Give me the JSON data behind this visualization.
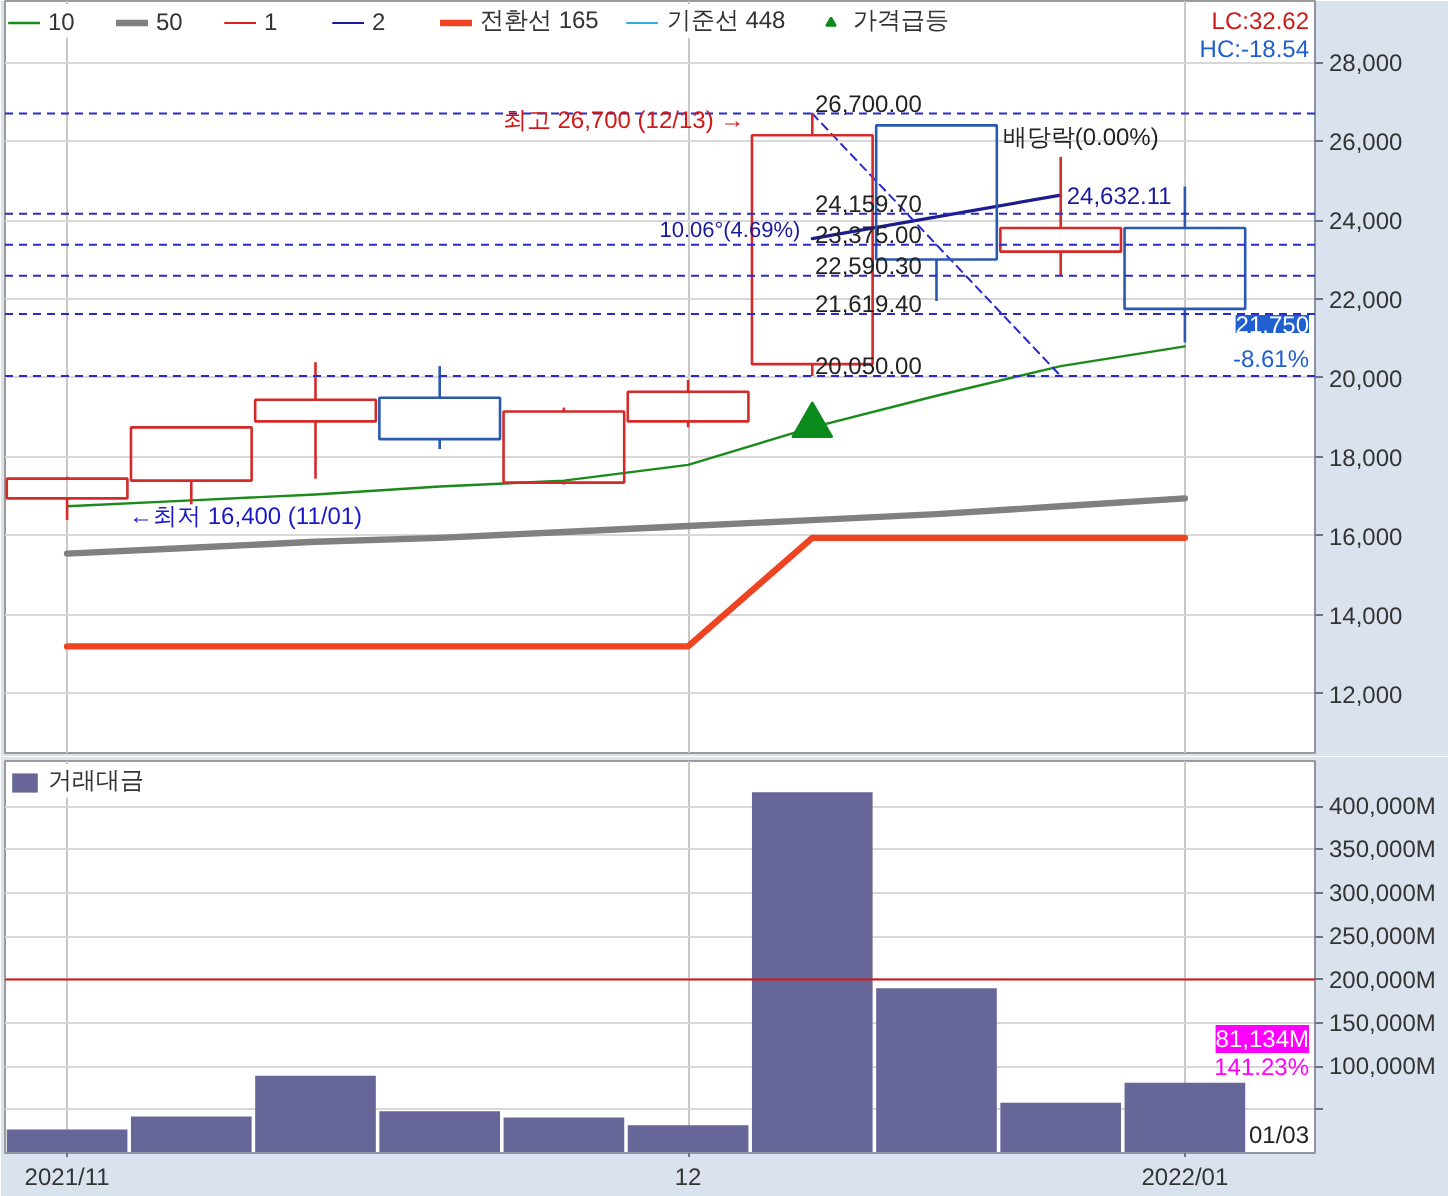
{
  "chart_data": [
    {
      "type": "candlestick",
      "x": [
        "2021-11-01",
        "2021-11-08",
        "2021-11-15",
        "2021-11-22",
        "2021-11-29",
        "2021-12-06",
        "2021-12-13",
        "2021-12-20",
        "2021-12-27",
        "2022-01-03"
      ],
      "ohlc": [
        [
          16950,
          17500,
          16400,
          17450
        ],
        [
          17400,
          18750,
          16800,
          18750
        ],
        [
          18900,
          20400,
          17450,
          19450
        ],
        [
          19500,
          20300,
          18200,
          18450
        ],
        [
          17350,
          19250,
          17300,
          19150
        ],
        [
          18900,
          19950,
          18750,
          19650
        ],
        [
          20350,
          26700,
          20050,
          26150
        ],
        [
          26400,
          26400,
          21950,
          23000
        ],
        [
          23200,
          25600,
          22600,
          23800
        ],
        [
          23800,
          24850,
          20900,
          21750
        ]
      ],
      "colors": [
        "#d42a2a",
        "#d42a2a",
        "#d42a2a",
        "#2a5ab0",
        "#d42a2a",
        "#d42a2a",
        "#d42a2a",
        "#2a5ab0",
        "#d42a2a",
        "#2a5ab0"
      ],
      "xlim": [
        "2021-10-28T12:00",
        "2022-01-10T08:00"
      ],
      "xticks": [
        {
          "value": "2021-11-01",
          "label": null
        },
        {
          "value": "2021-12-06",
          "label": null
        },
        {
          "value": "2022-01-03",
          "label": null
        }
      ],
      "ylim": [
        10500,
        29550
      ],
      "yticks": [
        {
          "value": 12000,
          "label": "12,000"
        },
        {
          "value": 14000,
          "label": "14,000"
        },
        {
          "value": 16000,
          "label": "16,000"
        },
        {
          "value": 18000,
          "label": "18,000"
        },
        {
          "value": 20000,
          "label": "20,000"
        },
        {
          "value": 22000,
          "label": "22,000"
        },
        {
          "value": 24000,
          "label": "24,000"
        },
        {
          "value": 26000,
          "label": "26,000"
        },
        {
          "value": 28000,
          "label": "28,000"
        }
      ],
      "tick_labels": "y",
      "grid": true,
      "legend": "top left",
      "series": [
        {
          "name": "10",
          "type": "line",
          "color": "#1a8a1a",
          "values": [
            16750,
            16900,
            17050,
            17250,
            17400,
            17800,
            18750,
            19550,
            20300,
            20800
          ]
        },
        {
          "name": "50",
          "type": "line",
          "color": "#808080",
          "values": [
            15550,
            15700,
            15850,
            15950,
            16100,
            16250,
            16400,
            16550,
            16750,
            16950
          ]
        },
        {
          "name": "1",
          "type": "line",
          "color": "#e02020",
          "values": [
            null,
            null,
            null,
            null,
            null,
            null,
            null,
            null,
            null,
            null
          ]
        },
        {
          "name": "2",
          "type": "line",
          "color": "#1a1aa0",
          "values": [
            null,
            null,
            null,
            null,
            null,
            null,
            null,
            null,
            null,
            null
          ]
        },
        {
          "name": "전환선 165",
          "type": "line",
          "color": "#ee4422",
          "values": [
            13200,
            13200,
            13200,
            13200,
            13200,
            13200,
            15950,
            15950,
            15950,
            15950
          ]
        },
        {
          "name": "기준선 448",
          "type": "line",
          "color": "#30b0e0",
          "values": [
            null,
            null,
            null,
            null,
            null,
            null,
            null,
            null,
            null,
            null
          ]
        },
        {
          "name": "가격급등",
          "type": "scatter",
          "marker": "triangle",
          "color": "#0a8a1a",
          "values": [
            null,
            null,
            null,
            null,
            null,
            null,
            18800,
            null,
            null,
            null
          ]
        },
        {
          "type": "line",
          "color": "#1c1c8c",
          "x": [
            "2021-12-13",
            "2021-12-27"
          ],
          "values": [
            23530,
            24632.11
          ]
        },
        {
          "type": "line",
          "line_style": "dashed",
          "color": "#2a2acc",
          "x": [
            "2021-12-13",
            "2021-12-27"
          ],
          "values": [
            26700,
            20050
          ]
        }
      ],
      "ref_lines": [
        {
          "axis": "y",
          "value": 26700,
          "label": "26,700.00",
          "color": "#2a2acc",
          "line_style": "dashed"
        },
        {
          "axis": "y",
          "value": 24159.7,
          "label": "24,159.70",
          "color": "#2a2acc",
          "line_style": "dashed"
        },
        {
          "axis": "y",
          "value": 23375,
          "label": "23,375.00",
          "color": "#2a2acc",
          "line_style": "dashed"
        },
        {
          "axis": "y",
          "value": 22590.3,
          "label": "22,590.30",
          "color": "#2a2acc",
          "line_style": "dashed"
        },
        {
          "axis": "y",
          "value": 21619.4,
          "label": "21,619.40",
          "color": "#2a2acc",
          "line_style": "dashed"
        },
        {
          "axis": "y",
          "value": 20050,
          "label": "20,050.00",
          "color": "#2a2acc",
          "line_style": "dashed"
        }
      ],
      "annotations": [
        {
          "text": "최고 26,700 (12/13) →",
          "x": "2021-12-13",
          "y": 26700
        },
        {
          "text": "←최저 16,400 (11/01)",
          "x": "2021-11-01",
          "y": 16400
        },
        {
          "text": "10.06°(4.69%)",
          "x": "2021-12-13",
          "y": 23530
        },
        {
          "text": "24,632.11",
          "x": "2021-12-27",
          "y": 24632.11
        },
        {
          "text": "배당락(0.00%)",
          "x": "2021-12-27",
          "y": 25600
        },
        {
          "text": "21,750",
          "y": 21750
        },
        {
          "text": "-8.61%",
          "y": 21750
        },
        "LC:32.62",
        "HC:-18.54"
      ]
    },
    {
      "type": "bar",
      "x": [
        "2021-11-01",
        "2021-11-08",
        "2021-11-15",
        "2021-11-22",
        "2021-11-29",
        "2021-12-06",
        "2021-12-13",
        "2021-12-20",
        "2021-12-27",
        "2022-01-03"
      ],
      "series": [
        {
          "name": "거래대금",
          "color": "#666699",
          "values": [
            27000,
            42000,
            89000,
            48000,
            41000,
            32000,
            416000,
            190000,
            58000,
            81134
          ]
        }
      ],
      "xlim": [
        "2021-10-28T12:00",
        "2022-01-10T08:00"
      ],
      "xticks": [
        {
          "value": "2021-11-01",
          "label": "2021/11"
        },
        {
          "value": "2021-12-06",
          "label": "12"
        },
        {
          "value": "2022-01-03",
          "label": "2022/01"
        }
      ],
      "ylim": [
        0,
        452000
      ],
      "yticks": [
        {
          "value": 50000,
          "label": null
        },
        {
          "value": 100000,
          "label": "100,000M"
        },
        {
          "value": 150000,
          "label": "150,000M"
        },
        {
          "value": 200000,
          "label": "200,000M"
        },
        {
          "value": 250000,
          "label": "250,000M"
        },
        {
          "value": 300000,
          "label": "300,000M"
        },
        {
          "value": 350000,
          "label": "350,000M"
        },
        {
          "value": 400000,
          "label": "400,000M"
        }
      ],
      "grid": true,
      "legend": "top left",
      "ref_lines": [
        {
          "axis": "y",
          "value": 200000,
          "color": "#dd1111"
        }
      ],
      "annotations": [
        "81,134M",
        "141.23%",
        "01/03"
      ]
    }
  ]
}
